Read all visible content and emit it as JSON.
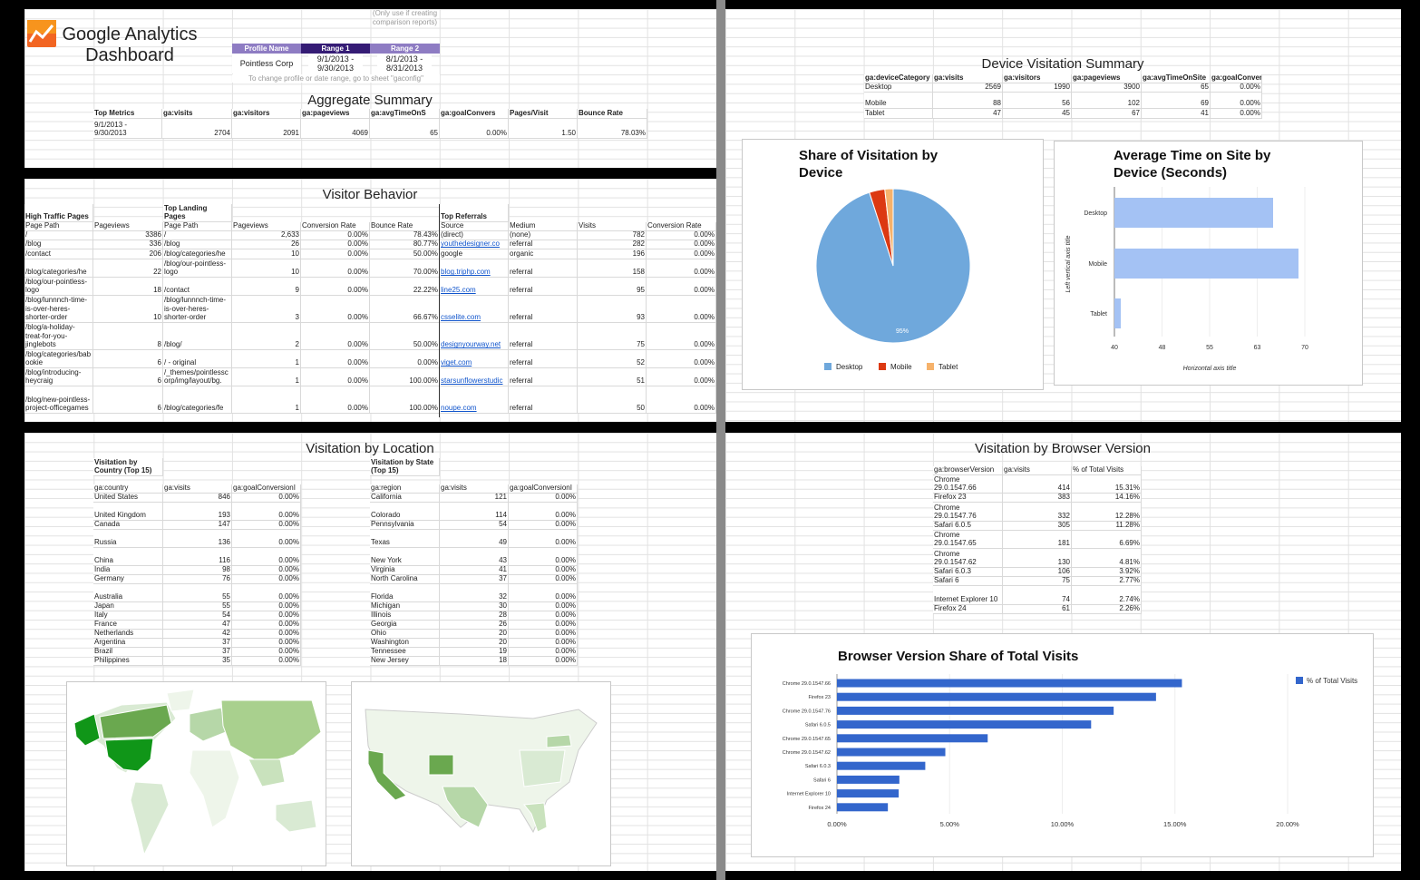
{
  "header": {
    "logo_icon": "analytics-chart-icon",
    "title_line1": "Google Analytics",
    "title_line2": "Dashboard"
  },
  "config": {
    "note_top": "(Only use if creating comparison reports)",
    "headers": [
      "Profile Name",
      "Range 1",
      "Range 2"
    ],
    "values": [
      "Pointless Corp",
      "9/1/2013 - 9/30/2013",
      "8/1/2013 - 8/31/2013"
    ],
    "note": "To change profile or date range, go to sheet \"gaconfig\"",
    "colors": {
      "profile": "#8e7cc3",
      "range1": "#351c75",
      "range2": "#8e7cc3"
    }
  },
  "aggregate": {
    "title": "Aggregate Summary",
    "header": [
      [
        "Top Metrics",
        "ga:visits",
        "ga:visitors",
        "ga:pageviews",
        "ga:avgTimeOnS",
        "ga:goalConvers",
        "Pages/Visit",
        "Bounce Rate"
      ]
    ],
    "rows": [
      [
        "9/1/2013 - 9/30/2013",
        "2704",
        "2091",
        "4069",
        "65",
        "0.00%",
        "1.50",
        "78.03%"
      ]
    ]
  },
  "visitor_behavior": {
    "title": "Visitor Behavior",
    "group_headers": {
      "high_traffic": "High Traffic Pages",
      "landing": "Top Landing Pages",
      "referrals": "Top Referrals"
    },
    "header": [
      [
        "Page Path",
        "Pageviews",
        "Page Path",
        "Pageviews",
        "Conversion Rate",
        "Bounce Rate",
        "Source",
        "Medium",
        "Visits",
        "Conversion Rate"
      ]
    ],
    "rows": [
      [
        "/",
        "3386",
        "/",
        "2,633",
        "0.00%",
        "78.43%",
        "(direct)",
        "(none)",
        "782",
        "0.00%"
      ],
      [
        "/blog",
        "336",
        "/blog",
        "26",
        "0.00%",
        "80.77%",
        "youthedesigner.co",
        "referral",
        "282",
        "0.00%"
      ],
      [
        "/contact",
        "206",
        "/blog/categories/he",
        "10",
        "0.00%",
        "50.00%",
        "google",
        "organic",
        "196",
        "0.00%"
      ],
      [
        "/blog/categories/he",
        "22",
        "/blog/our-pointless-logo",
        "10",
        "0.00%",
        "70.00%",
        "blog.triphp.com",
        "referral",
        "158",
        "0.00%"
      ],
      [
        "/blog/our-pointless-logo",
        "18",
        "/contact",
        "9",
        "0.00%",
        "22.22%",
        "line25.com",
        "referral",
        "95",
        "0.00%"
      ],
      [
        "/blog/lunnnch-time-is-over-heres-shorter-order",
        "10",
        "/blog/lunnnch-time-is-over-heres-shorter-order",
        "3",
        "0.00%",
        "66.67%",
        "csselite.com",
        "referral",
        "93",
        "0.00%"
      ],
      [
        "/blog/a-holiday-treat-for-you-jinglebots",
        "8",
        "/blog/",
        "2",
        "0.00%",
        "50.00%",
        "designyourway.net",
        "referral",
        "75",
        "0.00%"
      ],
      [
        "/blog/categories/babookie",
        "6",
        "/ - original",
        "1",
        "0.00%",
        "0.00%",
        "viget.com",
        "referral",
        "52",
        "0.00%"
      ],
      [
        "/blog/introducing-heycraig",
        "6",
        "/_themes/pointlesscorp/img/layout/bg.",
        "1",
        "0.00%",
        "100.00%",
        "starsunflowerstudic",
        "referral",
        "51",
        "0.00%"
      ],
      [
        "/blog/new-pointless-project-officegames",
        "6",
        "/blog/categories/fe",
        "1",
        "0.00%",
        "100.00%",
        "noupe.com",
        "referral",
        "50",
        "0.00%"
      ]
    ]
  },
  "device_summary": {
    "title": "Device Visitation Summary",
    "header": [
      [
        "ga:deviceCategory",
        "ga:visits",
        "ga:visitors",
        "ga:pageviews",
        "ga:avgTimeOnSite",
        "ga:goalConver"
      ]
    ],
    "rows": [
      [
        "Desktop",
        "2569",
        "1990",
        "3900",
        "65",
        "0.00%"
      ],
      [
        "Mobile",
        "88",
        "56",
        "102",
        "69",
        "0.00%"
      ],
      [
        "Tablet",
        "47",
        "45",
        "67",
        "41",
        "0.00%"
      ]
    ]
  },
  "location": {
    "title": "Visitation by Location",
    "country_title": "Visitation by Country (Top 15)",
    "state_title": "Visitation by State (Top 15)",
    "country_header": [
      [
        "ga:country",
        "ga:visits",
        "ga:goalConversionI"
      ]
    ],
    "country_rows": [
      [
        "United States",
        "846",
        "0.00%"
      ],
      [
        "United Kingdom",
        "193",
        "0.00%"
      ],
      [
        "Canada",
        "147",
        "0.00%"
      ],
      [
        "Russia",
        "136",
        "0.00%"
      ],
      [
        "China",
        "116",
        "0.00%"
      ],
      [
        "India",
        "98",
        "0.00%"
      ],
      [
        "Germany",
        "76",
        "0.00%"
      ],
      [
        "Australia",
        "55",
        "0.00%"
      ],
      [
        "Japan",
        "55",
        "0.00%"
      ],
      [
        "Italy",
        "54",
        "0.00%"
      ],
      [
        "France",
        "47",
        "0.00%"
      ],
      [
        "Netherlands",
        "42",
        "0.00%"
      ],
      [
        "Argentina",
        "37",
        "0.00%"
      ],
      [
        "Brazil",
        "37",
        "0.00%"
      ],
      [
        "Philippines",
        "35",
        "0.00%"
      ]
    ],
    "state_header": [
      [
        "ga:region",
        "ga:visits",
        "ga:goalConversionI"
      ]
    ],
    "state_rows": [
      [
        "California",
        "121",
        "0.00%"
      ],
      [
        "Colorado",
        "114",
        "0.00%"
      ],
      [
        "Pennsylvania",
        "54",
        "0.00%"
      ],
      [
        "Texas",
        "49",
        "0.00%"
      ],
      [
        "New York",
        "43",
        "0.00%"
      ],
      [
        "Virginia",
        "41",
        "0.00%"
      ],
      [
        "North Carolina",
        "37",
        "0.00%"
      ],
      [
        "Florida",
        "32",
        "0.00%"
      ],
      [
        "Michigan",
        "30",
        "0.00%"
      ],
      [
        "Illinois",
        "28",
        "0.00%"
      ],
      [
        "Georgia",
        "26",
        "0.00%"
      ],
      [
        "Ohio",
        "20",
        "0.00%"
      ],
      [
        "Washington",
        "20",
        "0.00%"
      ],
      [
        "Tennessee",
        "19",
        "0.00%"
      ],
      [
        "New Jersey",
        "18",
        "0.00%"
      ]
    ],
    "map_colors": {
      "low": "#d9ead3",
      "high": "#109618"
    }
  },
  "browser": {
    "title": "Visitation by Browser Version",
    "header": [
      [
        "ga:browserVersion",
        "ga:visits",
        "% of Total Visits"
      ]
    ],
    "rows": [
      [
        "Chrome 29.0.1547.66",
        "414",
        "15.31%"
      ],
      [
        "Firefox 23",
        "383",
        "14.16%"
      ],
      [
        "Chrome 29.0.1547.76",
        "332",
        "12.28%"
      ],
      [
        "Safari 6.0.5",
        "305",
        "11.28%"
      ],
      [
        "Chrome 29.0.1547.65",
        "181",
        "6.69%"
      ],
      [
        "Chrome 29.0.1547.62",
        "130",
        "4.81%"
      ],
      [
        "Safari 6.0.3",
        "106",
        "3.92%"
      ],
      [
        "Safari 6",
        "75",
        "2.77%"
      ],
      [
        "Internet Explorer 10",
        "74",
        "2.74%"
      ],
      [
        "Firefox 24",
        "61",
        "2.26%"
      ]
    ]
  },
  "chart_data": [
    {
      "type": "pie",
      "title": "Share of Visitation by Device",
      "categories": [
        "Desktop",
        "Mobile",
        "Tablet"
      ],
      "values": [
        2569,
        88,
        47
      ],
      "colors": [
        "#6fa8dc",
        "#dc3912",
        "#f6b26b"
      ],
      "slice_label": "95%",
      "legend": "bottom"
    },
    {
      "type": "bar",
      "orientation": "horizontal",
      "title": "Average Time on Site by Device (Seconds)",
      "categories": [
        "Desktop",
        "Mobile",
        "Tablet"
      ],
      "values": [
        65,
        69,
        41
      ],
      "xlim": [
        40,
        70
      ],
      "xticks": [
        "40",
        "48",
        "55",
        "63",
        "70"
      ],
      "xlabel": "Horizontal axis title",
      "ylabel": "Left vertical axis title",
      "color": "#a4c2f4",
      "grid": true
    },
    {
      "type": "bar",
      "orientation": "horizontal",
      "title": "Browser Version Share of Total Visits",
      "categories": [
        "Chrome 29.0.1547.66",
        "Firefox 23",
        "Chrome 29.0.1547.76",
        "Safari 6.0.5",
        "Chrome 29.0.1547.65",
        "Chrome 29.0.1547.62",
        "Safari 6.0.3",
        "Safari 6",
        "Internet Explorer 10",
        "Firefox 24"
      ],
      "series": [
        {
          "name": "% of Total Visits",
          "values": [
            15.31,
            14.16,
            12.28,
            11.28,
            6.69,
            4.81,
            3.92,
            2.77,
            2.74,
            2.26
          ]
        }
      ],
      "xlim": [
        0,
        20
      ],
      "xticks": [
        "0.00%",
        "5.00%",
        "10.00%",
        "15.00%",
        "20.00%"
      ],
      "color": "#3366cc",
      "legend": "right",
      "grid": true
    }
  ]
}
